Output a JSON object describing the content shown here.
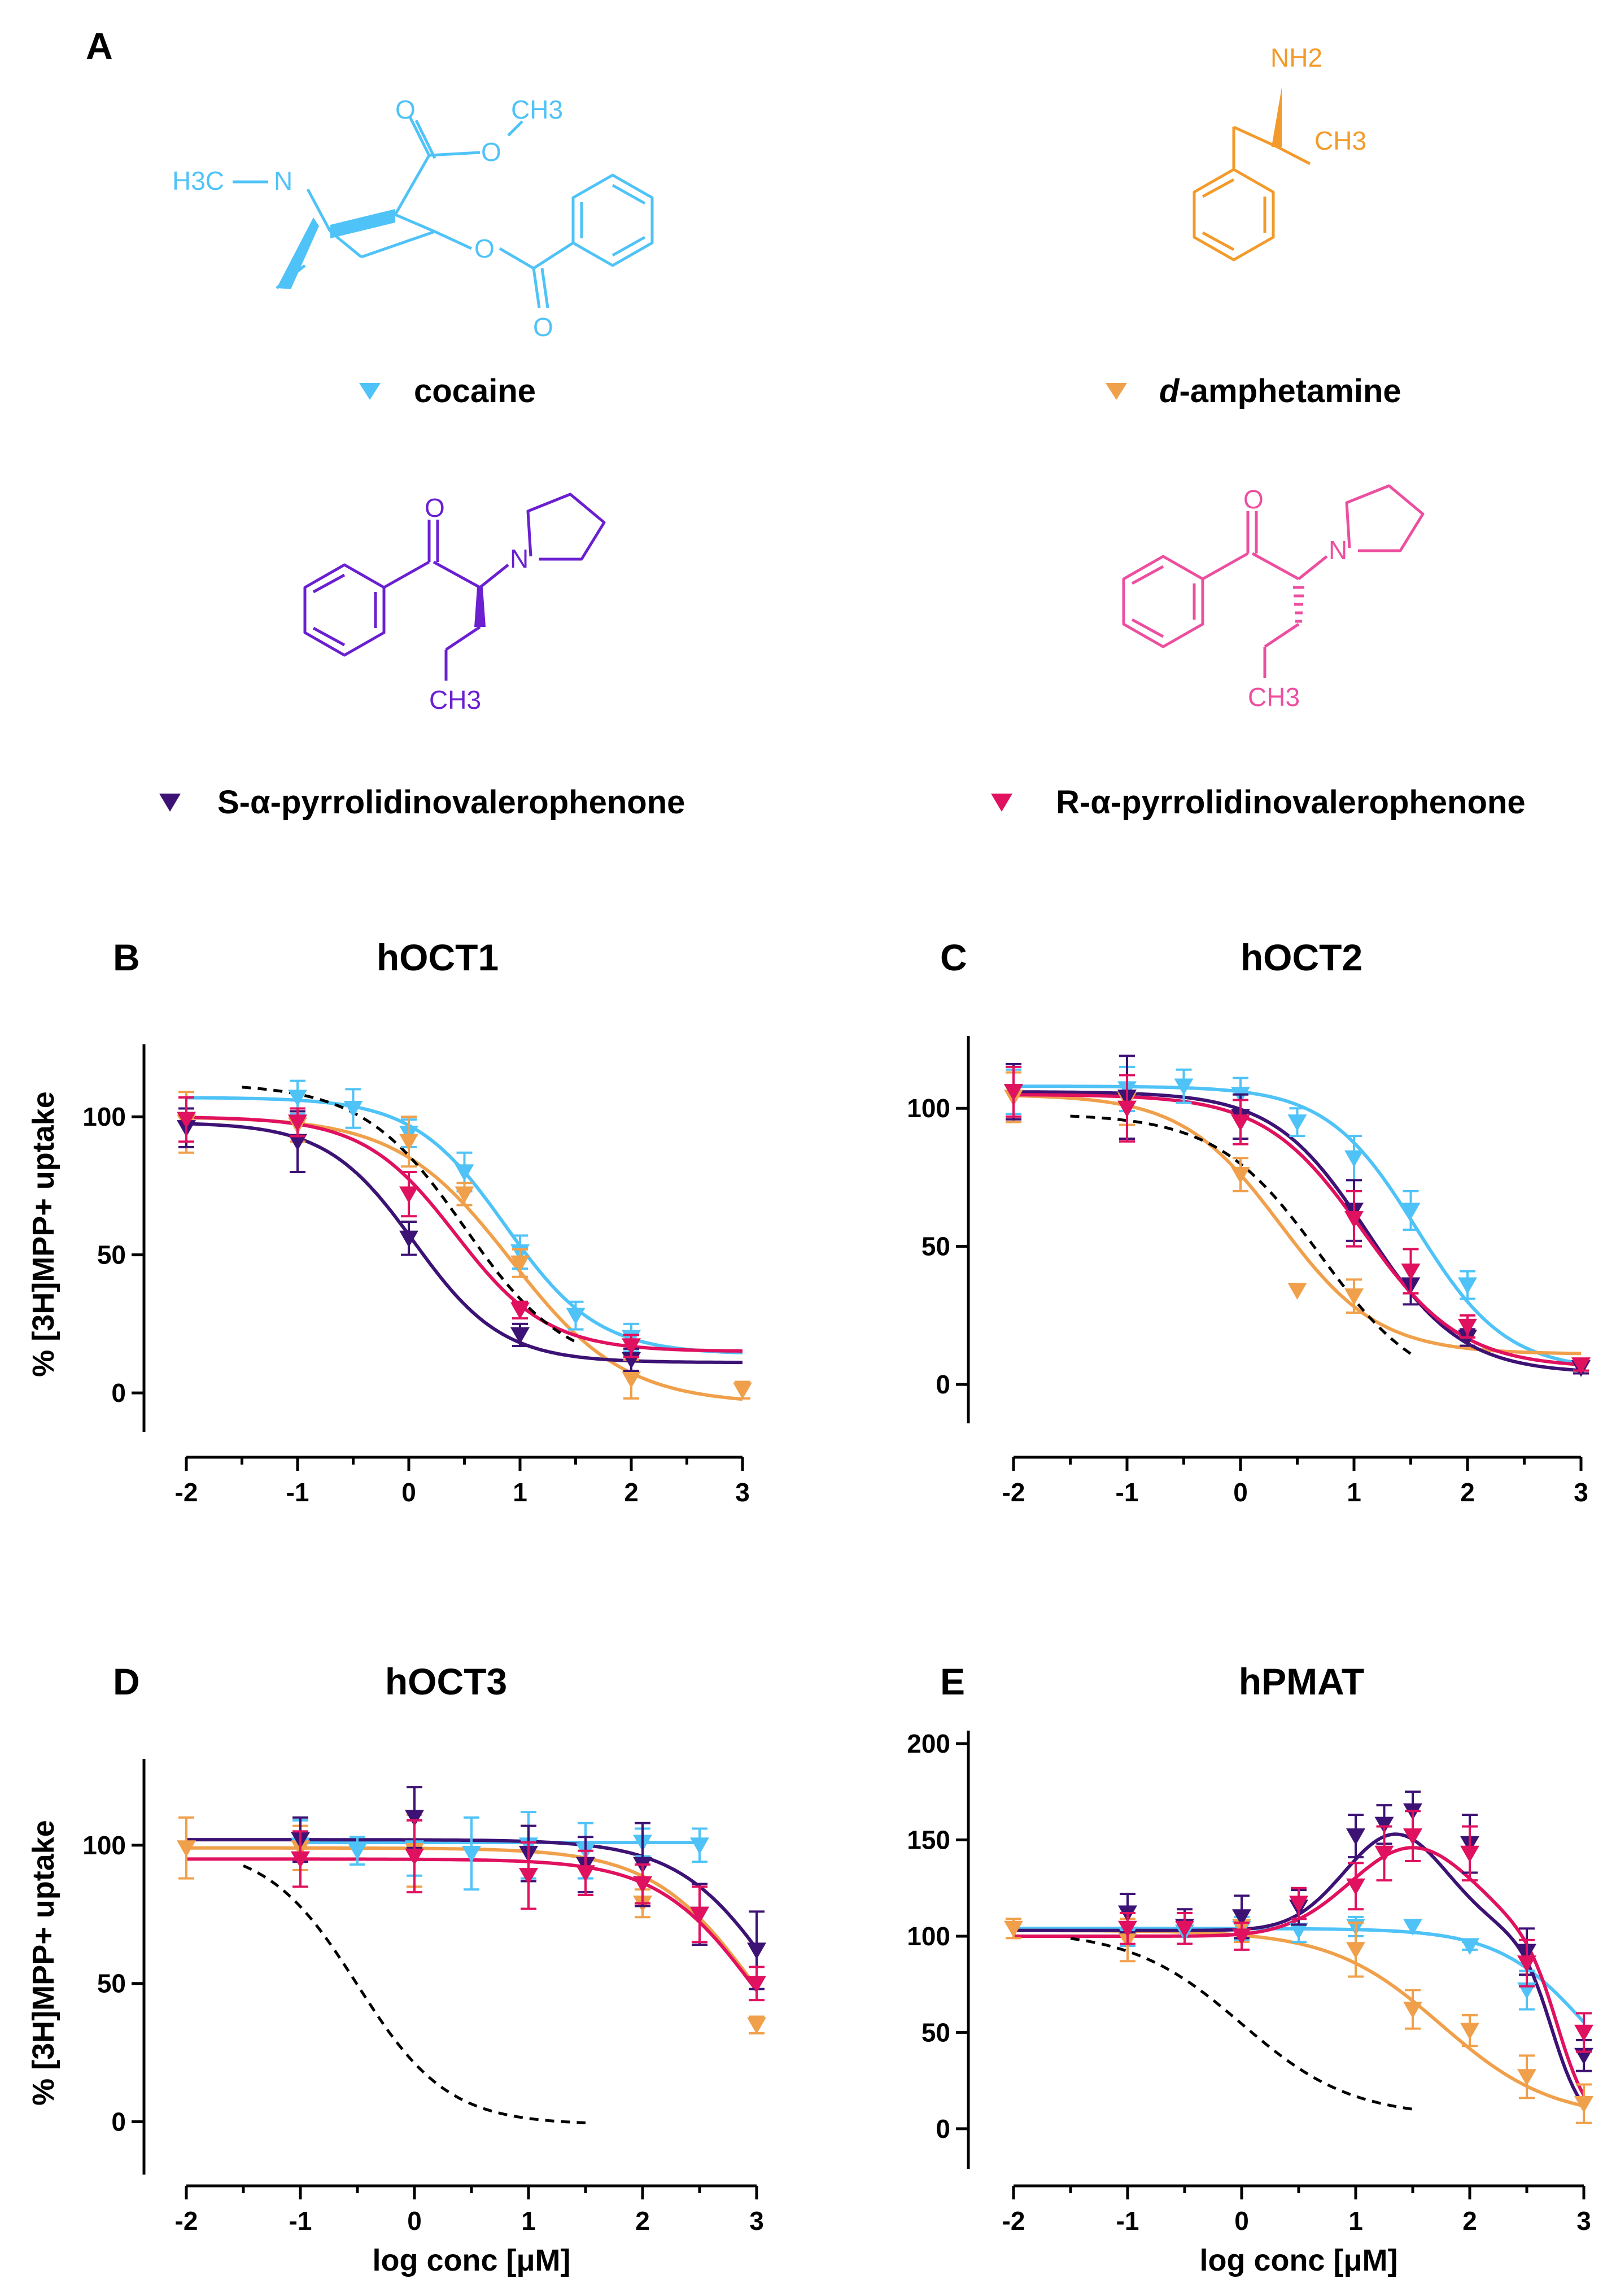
{
  "figure_panel_a": {
    "letter": "A",
    "compounds": [
      {
        "key": "cocaine",
        "label": "cocaine",
        "italic_prefix": "",
        "color": "#4fc3f7",
        "atoms": {
          "h3c": "H3C",
          "n": "N",
          "o1": "O",
          "o2": "O",
          "o3": "O",
          "o4": "O",
          "ch3": "CH3"
        }
      },
      {
        "key": "amphetamine",
        "label": "-amphetamine",
        "italic_prefix": "d",
        "color": "#f39a2a",
        "atoms": {
          "nh2": "NH2",
          "ch3": "CH3"
        }
      },
      {
        "key": "s_apvp",
        "label": "S-α-pyrrolidinovalerophenone",
        "italic_prefix": "",
        "color": "#6a1fd1",
        "atoms": {
          "o": "O",
          "n": "N",
          "ch3": "CH3"
        }
      },
      {
        "key": "r_apvp",
        "label": "R-α-pyrrolidinovalerophenone",
        "italic_prefix": "",
        "color": "#ec4fa0",
        "atoms": {
          "o": "O",
          "n": "N",
          "ch3": "CH3"
        }
      }
    ]
  },
  "axes": {
    "xlabel": "log conc [μM]",
    "ylabel": "% [3H]MPP+ uptake",
    "x_ticks": [
      "-2",
      "-1",
      "0",
      "1",
      "2",
      "3"
    ],
    "x_minor": [
      -1.5,
      -0.5,
      0.5,
      1.5,
      2.5
    ]
  },
  "series_colors": {
    "cocaine": "#4fc3f7",
    "amphetamine": "#f0a04b",
    "s_apvp": "#3d1275",
    "r_apvp": "#e0115f",
    "reference": "#000000"
  },
  "chart_data": [
    {
      "letter": "B",
      "title": "hOCT1",
      "type": "scatter",
      "xlim": [
        -2,
        3
      ],
      "ylim": [
        -10,
        125
      ],
      "yticks": [
        0,
        50,
        100
      ],
      "show_xlabel": false,
      "show_ylabel": true,
      "series": [
        {
          "name": "cocaine",
          "x": [
            -1,
            -0.5,
            0,
            0.5,
            1,
            1.5,
            2
          ],
          "y": [
            107,
            103,
            94,
            80,
            51,
            28,
            20
          ],
          "err": [
            6,
            7,
            5,
            7,
            6,
            5,
            5
          ],
          "fit": {
            "kind": "hill",
            "top": 107,
            "bottom": 14,
            "logic50": 0.87,
            "hill": 1.05
          }
        },
        {
          "name": "amphetamine",
          "x": [
            -2,
            -1,
            0,
            0.5,
            1,
            2,
            3
          ],
          "y": [
            98,
            97,
            91,
            72,
            47,
            5,
            1
          ],
          "err": [
            11,
            6,
            9,
            4,
            5,
            7,
            3
          ],
          "fit": {
            "kind": "hill",
            "top": 100,
            "bottom": -4,
            "logic50": 0.92,
            "hill": 0.85
          }
        },
        {
          "name": "s_apvp",
          "x": [
            -2,
            -1,
            0,
            1,
            2
          ],
          "y": [
            96,
            91,
            56,
            21,
            12
          ],
          "err": [
            7,
            11,
            6,
            4,
            4
          ],
          "fit": {
            "kind": "hill",
            "top": 98,
            "bottom": 11,
            "logic50": 0.05,
            "hill": 1.1
          }
        },
        {
          "name": "r_apvp",
          "x": [
            -2,
            -1,
            0,
            1,
            2
          ],
          "y": [
            99,
            98,
            72,
            30,
            17
          ],
          "err": [
            8,
            5,
            8,
            3,
            4
          ],
          "fit": {
            "kind": "hill",
            "top": 100,
            "bottom": 15,
            "logic50": 0.42,
            "hill": 1.05
          }
        },
        {
          "name": "reference",
          "dashed": true,
          "fit": {
            "kind": "hill",
            "top": 112,
            "bottom": 8,
            "logic50": 0.5,
            "hill": 0.95,
            "from": -1.5,
            "to": 1.5
          }
        }
      ]
    },
    {
      "letter": "C",
      "title": "hOCT2",
      "type": "scatter",
      "xlim": [
        -2,
        3
      ],
      "ylim": [
        -10,
        125
      ],
      "yticks": [
        0,
        50,
        100
      ],
      "show_xlabel": false,
      "show_ylabel": false,
      "series": [
        {
          "name": "cocaine",
          "x": [
            -2,
            -1,
            -0.5,
            0,
            0.5,
            1,
            1.5,
            2
          ],
          "y": [
            106,
            107,
            108,
            105,
            95,
            82,
            63,
            36
          ],
          "err": [
            8,
            8,
            6,
            6,
            5,
            8,
            7,
            5
          ],
          "fit": {
            "kind": "hill",
            "top": 108,
            "bottom": 5,
            "logic50": 1.55,
            "hill": 1.1
          }
        },
        {
          "name": "amphetamine",
          "x": [
            -2,
            -1,
            0,
            0.5,
            1,
            2,
            3
          ],
          "y": [
            104,
            103,
            76,
            34,
            32,
            17,
            7
          ],
          "err": [
            9,
            9,
            6,
            0,
            6,
            3,
            2
          ],
          "fit": {
            "kind": "hill",
            "top": 105,
            "bottom": 11,
            "logic50": 0.35,
            "hill": 1.0
          }
        },
        {
          "name": "s_apvp",
          "x": [
            -2,
            -1,
            0,
            1,
            1.5,
            2,
            3
          ],
          "y": [
            106,
            104,
            97,
            63,
            36,
            17,
            6
          ],
          "err": [
            10,
            15,
            8,
            11,
            7,
            3,
            2
          ],
          "fit": {
            "kind": "hill",
            "top": 106,
            "bottom": 4,
            "logic50": 1.12,
            "hill": 1.05
          }
        },
        {
          "name": "r_apvp",
          "x": [
            -2,
            -1,
            0,
            1,
            1.5,
            2,
            3
          ],
          "y": [
            106,
            100,
            95,
            60,
            41,
            21,
            7
          ],
          "err": [
            9,
            12,
            8,
            10,
            8,
            4,
            2
          ],
          "fit": {
            "kind": "hill",
            "top": 105,
            "bottom": 6,
            "logic50": 1.08,
            "hill": 1.0
          }
        },
        {
          "name": "reference",
          "dashed": true,
          "fit": {
            "kind": "hill",
            "top": 98,
            "bottom": -4,
            "logic50": 0.7,
            "hill": 0.95,
            "from": -1.5,
            "to": 1.5
          }
        }
      ]
    },
    {
      "letter": "D",
      "title": "hOCT3",
      "type": "scatter",
      "xlim": [
        -2,
        3
      ],
      "ylim": [
        -15,
        130
      ],
      "yticks": [
        0,
        50,
        100
      ],
      "show_xlabel": true,
      "show_ylabel": true,
      "series": [
        {
          "name": "cocaine",
          "x": [
            -1,
            -0.5,
            0,
            0.5,
            1,
            1.5,
            2,
            2.5
          ],
          "y": [
            100,
            98,
            99,
            97,
            100,
            98,
            101,
            100
          ],
          "err": [
            9,
            5,
            10,
            13,
            12,
            10,
            5,
            6
          ],
          "fit": {
            "kind": "flat",
            "y": 101
          }
        },
        {
          "name": "amphetamine",
          "x": [
            -2,
            -1,
            0,
            1,
            2,
            3
          ],
          "y": [
            99,
            99,
            98,
            97,
            79,
            35
          ],
          "err": [
            11,
            8,
            13,
            10,
            5,
            3
          ],
          "fit": {
            "kind": "hill",
            "top": 99,
            "bottom": -2,
            "logic50": 3.0,
            "hill": 0.95
          }
        },
        {
          "name": "s_apvp",
          "x": [
            -1,
            0,
            1,
            1.5,
            2,
            2.5,
            3
          ],
          "y": [
            102,
            110,
            97,
            93,
            93,
            75,
            62
          ],
          "err": [
            8,
            11,
            10,
            10,
            15,
            11,
            14
          ],
          "fit": {
            "kind": "hill",
            "top": 102,
            "bottom": 0,
            "logic50": 3.2,
            "hill": 1.0
          }
        },
        {
          "name": "r_apvp",
          "x": [
            -1,
            0,
            1,
            1.5,
            2,
            2.5,
            3
          ],
          "y": [
            95,
            96,
            89,
            90,
            86,
            75,
            50
          ],
          "err": [
            10,
            13,
            12,
            8,
            7,
            10,
            6
          ],
          "fit": {
            "kind": "hill",
            "top": 95,
            "bottom": 0,
            "logic50": 3.0,
            "hill": 1.0
          }
        },
        {
          "name": "reference",
          "dashed": true,
          "fit": {
            "kind": "hill",
            "top": 100,
            "bottom": -1,
            "logic50": -0.5,
            "hill": 1.1,
            "from": -1.5,
            "to": 1.5
          }
        }
      ]
    },
    {
      "letter": "E",
      "title": "hPMAT",
      "type": "scatter",
      "xlim": [
        -2,
        3
      ],
      "ylim": [
        -15,
        205
      ],
      "yticks": [
        0,
        50,
        100,
        150,
        200
      ],
      "show_xlabel": true,
      "show_ylabel": false,
      "series": [
        {
          "name": "cocaine",
          "x": [
            -1,
            -0.5,
            0,
            0.5,
            1,
            1.5,
            2,
            2.5
          ],
          "y": [
            101,
            102,
            104,
            103,
            105,
            105,
            95,
            72
          ],
          "err": [
            6,
            6,
            6,
            6,
            5,
            3,
            2,
            10
          ],
          "fit": {
            "kind": "hill",
            "top": 104,
            "bottom": 0,
            "logic50": 3.05,
            "hill": 1.1
          }
        },
        {
          "name": "amphetamine",
          "x": [
            -2,
            -1,
            0,
            1,
            1.5,
            2,
            2.5,
            3
          ],
          "y": [
            104,
            98,
            105,
            93,
            62,
            51,
            27,
            13
          ],
          "err": [
            5,
            11,
            8,
            14,
            10,
            8,
            11,
            10
          ],
          "fit": {
            "kind": "hill",
            "top": 103,
            "bottom": 5,
            "logic50": 1.75,
            "hill": 0.9
          }
        },
        {
          "name": "s_apvp",
          "x": [
            -1,
            -0.5,
            0,
            0.5,
            1,
            1.25,
            1.5,
            2,
            2.5,
            3
          ],
          "y": [
            112,
            105,
            110,
            115,
            152,
            158,
            165,
            148,
            92,
            38
          ],
          "err": [
            10,
            9,
            11,
            9,
            11,
            10,
            10,
            15,
            12,
            8
          ],
          "fit": {
            "kind": "bell",
            "base": 103,
            "amp": 50,
            "mu": 1.35,
            "sigma": 0.45,
            "cut": 2.72,
            "cutw": 0.14
          }
        },
        {
          "name": "r_apvp",
          "x": [
            -1,
            -0.5,
            0,
            0.5,
            1,
            1.25,
            1.5,
            2,
            2.5,
            3
          ],
          "y": [
            104,
            104,
            100,
            117,
            126,
            143,
            152,
            143,
            86,
            50
          ],
          "err": [
            8,
            8,
            7,
            8,
            12,
            14,
            13,
            14,
            12,
            10
          ],
          "fit": {
            "kind": "bell",
            "base": 100,
            "amp": 46,
            "mu": 1.5,
            "sigma": 0.55,
            "cut": 2.78,
            "cutw": 0.14
          }
        },
        {
          "name": "reference",
          "dashed": true,
          "fit": {
            "kind": "hill",
            "top": 103,
            "bottom": 6,
            "logic50": 0.0,
            "hill": 0.9,
            "from": -1.5,
            "to": 1.5
          }
        }
      ]
    }
  ]
}
